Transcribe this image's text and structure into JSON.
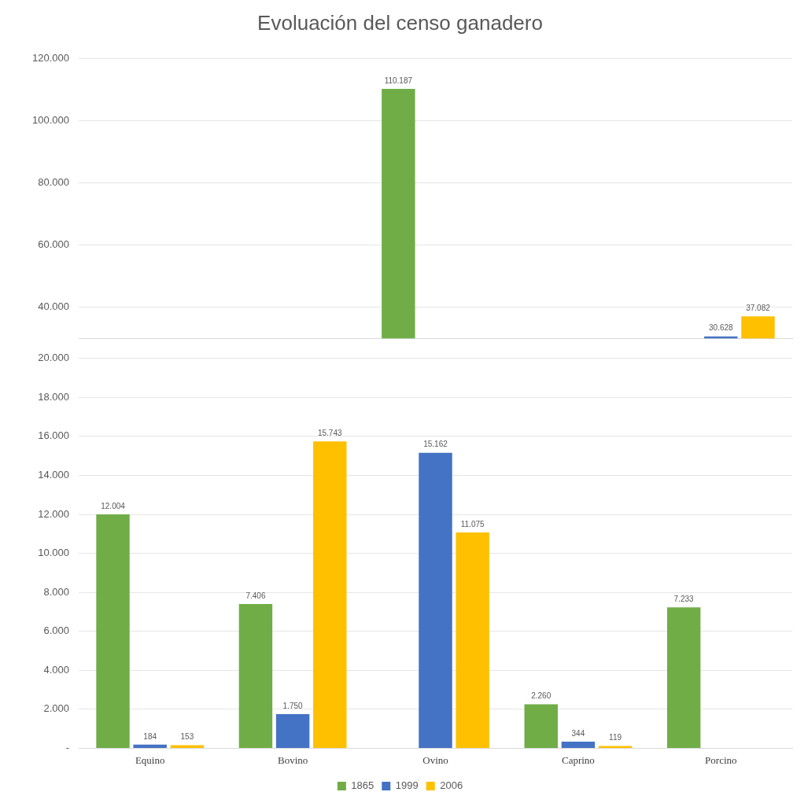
{
  "chart_data": [
    {
      "type": "bar",
      "title": "Evoluación del censo ganadero",
      "categories": [
        null,
        null,
        null,
        null,
        null
      ],
      "series": [
        {
          "color": "#70ad47",
          "values": [
            null,
            null,
            110187,
            null,
            null
          ],
          "value_labels": [
            null,
            null,
            "110.187",
            null,
            null
          ]
        },
        {
          "color": "#4472c4",
          "values": [
            null,
            null,
            null,
            null,
            30628
          ],
          "value_labels": [
            null,
            null,
            null,
            null,
            "30.628"
          ]
        },
        {
          "color": "#ffc000",
          "values": [
            null,
            null,
            null,
            null,
            37082
          ],
          "value_labels": [
            null,
            null,
            null,
            null,
            "37.082"
          ]
        }
      ],
      "ylim": [
        30000,
        120000
      ],
      "yticks": [
        {
          "value": 40000,
          "label": "40.000"
        },
        {
          "value": 60000,
          "label": "60.000"
        },
        {
          "value": 80000,
          "label": "80.000"
        },
        {
          "value": 100000,
          "label": "100.000"
        },
        {
          "value": 120000,
          "label": "120.000"
        }
      ],
      "grid": "y",
      "tick_labels": "y"
    },
    {
      "type": "bar",
      "categories": [
        "Equino",
        "Bovino",
        "Ovino",
        "Caprino",
        "Porcino"
      ],
      "series": [
        {
          "name": "1865",
          "color": "#70ad47",
          "values": [
            12004,
            7406,
            null,
            2260,
            7233
          ],
          "value_labels": [
            "12.004",
            "7.406",
            null,
            "2.260",
            "7.233"
          ]
        },
        {
          "name": "1999",
          "color": "#4472c4",
          "values": [
            184,
            1750,
            15162,
            344,
            null
          ],
          "value_labels": [
            "184",
            "1.750",
            "15.162",
            "344",
            null
          ]
        },
        {
          "name": "2006",
          "color": "#ffc000",
          "values": [
            153,
            15743,
            11075,
            119,
            null
          ],
          "value_labels": [
            "153",
            "15.743",
            "11.075",
            "119",
            null
          ]
        }
      ],
      "ylim": [
        0,
        20000
      ],
      "yticks": [
        {
          "value": 0,
          "label": "-"
        },
        {
          "value": 2000,
          "label": "2.000"
        },
        {
          "value": 4000,
          "label": "4.000"
        },
        {
          "value": 6000,
          "label": "6.000"
        },
        {
          "value": 8000,
          "label": "8.000"
        },
        {
          "value": 10000,
          "label": "10.000"
        },
        {
          "value": 12000,
          "label": "12.000"
        },
        {
          "value": 14000,
          "label": "14.000"
        },
        {
          "value": 16000,
          "label": "16.000"
        },
        {
          "value": 18000,
          "label": "18.000"
        },
        {
          "value": 20000,
          "label": "20.000"
        }
      ],
      "grid": "y",
      "legend": "bottom"
    }
  ]
}
